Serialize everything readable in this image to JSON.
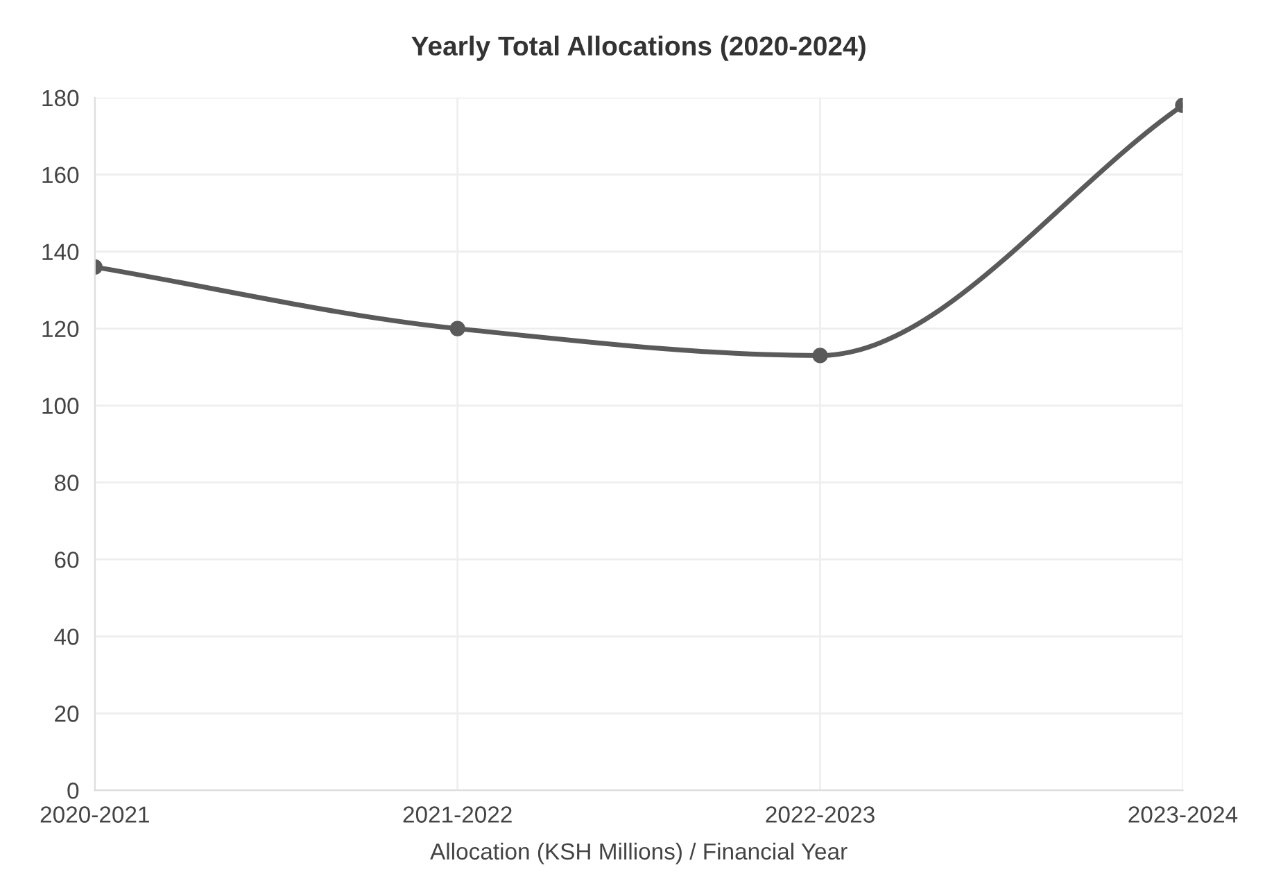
{
  "chart_data": {
    "type": "line",
    "title": "Yearly Total Allocations (2020-2024)",
    "xlabel": "Allocation (KSH Millions) / Financial Year",
    "categories": [
      "2020-2021",
      "2021-2022",
      "2022-2023",
      "2023-2024"
    ],
    "series": [
      {
        "color": "#5a5a5a",
        "values": [
          136,
          120,
          113,
          178
        ]
      }
    ],
    "ylim": [
      0,
      180
    ],
    "yticks": [
      0,
      20,
      40,
      60,
      80,
      100,
      120,
      140,
      160,
      180
    ],
    "grid": true,
    "marker": "circle",
    "line_style": "solid"
  }
}
